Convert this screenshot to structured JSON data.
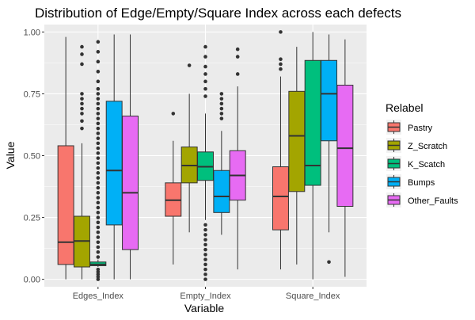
{
  "chart_data": {
    "type": "boxplot",
    "title": "Distribution of Edge/Empty/Square Index across each defects",
    "xlabel": "Variable",
    "ylabel": "Value",
    "ylim": [
      -0.03,
      1.03
    ],
    "yticks": [
      0.0,
      0.25,
      0.5,
      0.75,
      1.0
    ],
    "ytick_labels": [
      "0.00",
      "0.25",
      "0.50",
      "0.75",
      "1.00"
    ],
    "categories": [
      "Edges_Index",
      "Empty_Index",
      "Square_Index"
    ],
    "legend": {
      "title": "Relabel",
      "position": "right"
    },
    "background": "#ebebeb",
    "grid": true,
    "series": [
      {
        "name": "Pastry",
        "color": "#F8766D",
        "boxes": [
          {
            "min": 0.0,
            "q1": 0.06,
            "median": 0.15,
            "q3": 0.54,
            "max": 0.98,
            "outliers": []
          },
          {
            "min": 0.06,
            "q1": 0.255,
            "median": 0.32,
            "q3": 0.39,
            "max": 0.56,
            "outliers": [
              0.67
            ]
          },
          {
            "min": 0.04,
            "q1": 0.2,
            "median": 0.335,
            "q3": 0.455,
            "max": 0.82,
            "outliers": [
              0.85,
              0.87,
              0.89,
              1.0
            ]
          }
        ]
      },
      {
        "name": "Z_Scratch",
        "color": "#A3A500",
        "boxes": [
          {
            "min": 0.0,
            "q1": 0.05,
            "median": 0.155,
            "q3": 0.255,
            "max": 0.55,
            "outliers": [
              0.61,
              0.64,
              0.67,
              0.69,
              0.71,
              0.73,
              0.75,
              0.87,
              0.91,
              0.94
            ]
          },
          {
            "min": 0.19,
            "q1": 0.39,
            "median": 0.46,
            "q3": 0.535,
            "max": 0.75,
            "outliers": [
              0.865
            ]
          },
          {
            "min": 0.06,
            "q1": 0.355,
            "median": 0.58,
            "q3": 0.76,
            "max": 0.94,
            "outliers": []
          }
        ]
      },
      {
        "name": "K_Scatch",
        "color": "#00BF7D",
        "boxes": [
          {
            "min": 0.05,
            "q1": 0.055,
            "median": 0.06,
            "q3": 0.07,
            "max": 0.08,
            "outliers": [
              0.0,
              0.01,
              0.02,
              0.03,
              0.04,
              0.09,
              0.11,
              0.13,
              0.15,
              0.17,
              0.19,
              0.21,
              0.23,
              0.25,
              0.27,
              0.29,
              0.31,
              0.33,
              0.35,
              0.37,
              0.39,
              0.41,
              0.43,
              0.45,
              0.47,
              0.49,
              0.51,
              0.53,
              0.55,
              0.57,
              0.59,
              0.61,
              0.63,
              0.65,
              0.67,
              0.69,
              0.71,
              0.73,
              0.75,
              0.77,
              0.8,
              0.84,
              0.88,
              0.92,
              0.96
            ]
          },
          {
            "min": 0.24,
            "q1": 0.4,
            "median": 0.455,
            "q3": 0.515,
            "max": 0.67,
            "outliers": [
              0.0,
              0.02,
              0.04,
              0.06,
              0.08,
              0.1,
              0.12,
              0.14,
              0.16,
              0.18,
              0.2,
              0.22,
              0.74,
              0.77,
              0.8,
              0.83,
              0.86,
              0.9,
              0.94
            ]
          },
          {
            "min": 0.0,
            "q1": 0.38,
            "median": 0.46,
            "q3": 0.885,
            "max": 1.0,
            "outliers": []
          }
        ]
      },
      {
        "name": "Bumps",
        "color": "#00B0F6",
        "boxes": [
          {
            "min": 0.0,
            "q1": 0.22,
            "median": 0.44,
            "q3": 0.72,
            "max": 0.99,
            "outliers": []
          },
          {
            "min": 0.18,
            "q1": 0.27,
            "median": 0.335,
            "q3": 0.44,
            "max": 0.6,
            "outliers": [
              0.65,
              0.67,
              0.69,
              0.71,
              0.73,
              0.75
            ]
          },
          {
            "min": 0.19,
            "q1": 0.56,
            "median": 0.75,
            "q3": 0.885,
            "max": 0.99,
            "outliers": [
              0.07
            ]
          }
        ]
      },
      {
        "name": "Other_Faults",
        "color": "#E76BF3",
        "boxes": [
          {
            "min": 0.0,
            "q1": 0.12,
            "median": 0.35,
            "q3": 0.66,
            "max": 0.99,
            "outliers": []
          },
          {
            "min": 0.04,
            "q1": 0.32,
            "median": 0.42,
            "q3": 0.52,
            "max": 0.78,
            "outliers": [
              0.83,
              0.9,
              0.93
            ]
          },
          {
            "min": 0.01,
            "q1": 0.295,
            "median": 0.53,
            "q3": 0.785,
            "max": 0.97,
            "outliers": []
          }
        ]
      }
    ]
  }
}
